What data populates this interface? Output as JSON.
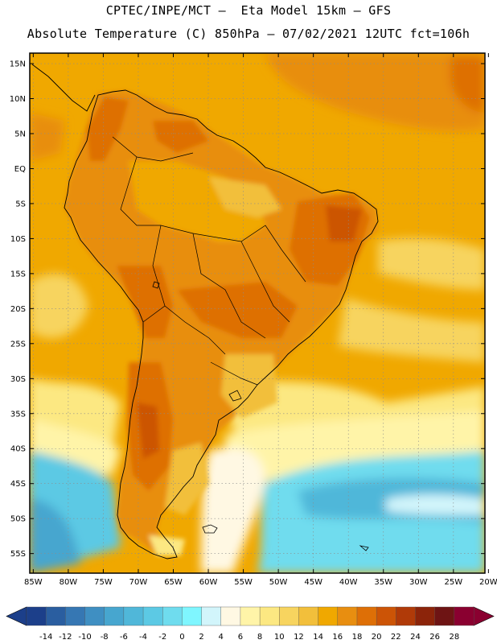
{
  "header": {
    "line1": "CPTEC/INPE/MCT –  Eta Model 15km – GFS",
    "line2": "Absolute Temperature (C) 850hPa – 07/02/2021 12UTC fct=106h"
  },
  "map": {
    "lat_labels": [
      "15N",
      "10N",
      "5N",
      "EQ",
      "5S",
      "10S",
      "15S",
      "20S",
      "25S",
      "30S",
      "35S",
      "40S",
      "45S",
      "50S",
      "55S"
    ],
    "lat_values": [
      15,
      10,
      5,
      0,
      -5,
      -10,
      -15,
      -20,
      -25,
      -30,
      -35,
      -40,
      -45,
      -50,
      -55
    ],
    "lon_labels": [
      "85W",
      "80W",
      "75W",
      "70W",
      "65W",
      "60W",
      "55W",
      "50W",
      "45W",
      "40W",
      "35W",
      "30W",
      "25W",
      "20W"
    ],
    "lon_values": [
      -85,
      -80,
      -75,
      -70,
      -65,
      -60,
      -55,
      -50,
      -45,
      -40,
      -35,
      -30,
      -25,
      -20
    ],
    "lon_range": [
      -85.5,
      -20.5
    ],
    "lat_range": [
      -57.8,
      16.5
    ],
    "ocean_base_color": "#f0a800",
    "land_base_color": "#e88e10"
  },
  "colorbar": {
    "labels": [
      "-14",
      "-12",
      "-10",
      "-8",
      "-6",
      "-4",
      "-2",
      "0",
      "2",
      "4",
      "6",
      "8",
      "10",
      "12",
      "14",
      "16",
      "18",
      "20",
      "22",
      "24",
      "26",
      "28"
    ],
    "colors": [
      "#1c3f8a",
      "#2a5ea0",
      "#3677b3",
      "#3f8fc2",
      "#47a6cf",
      "#50b7d9",
      "#5cc9e4",
      "#6fdcee",
      "#7ff6ff",
      "#d2f5fb",
      "#fff8e3",
      "#fff4a8",
      "#fce882",
      "#f7d45f",
      "#f2bf3b",
      "#f0a800",
      "#e88e10",
      "#de6f06",
      "#cc5406",
      "#b03a08",
      "#8c240a",
      "#6e1414",
      "#8a0030"
    ],
    "left_arrow_color": "#1c3f8a",
    "right_arrow_color": "#8a0030"
  }
}
